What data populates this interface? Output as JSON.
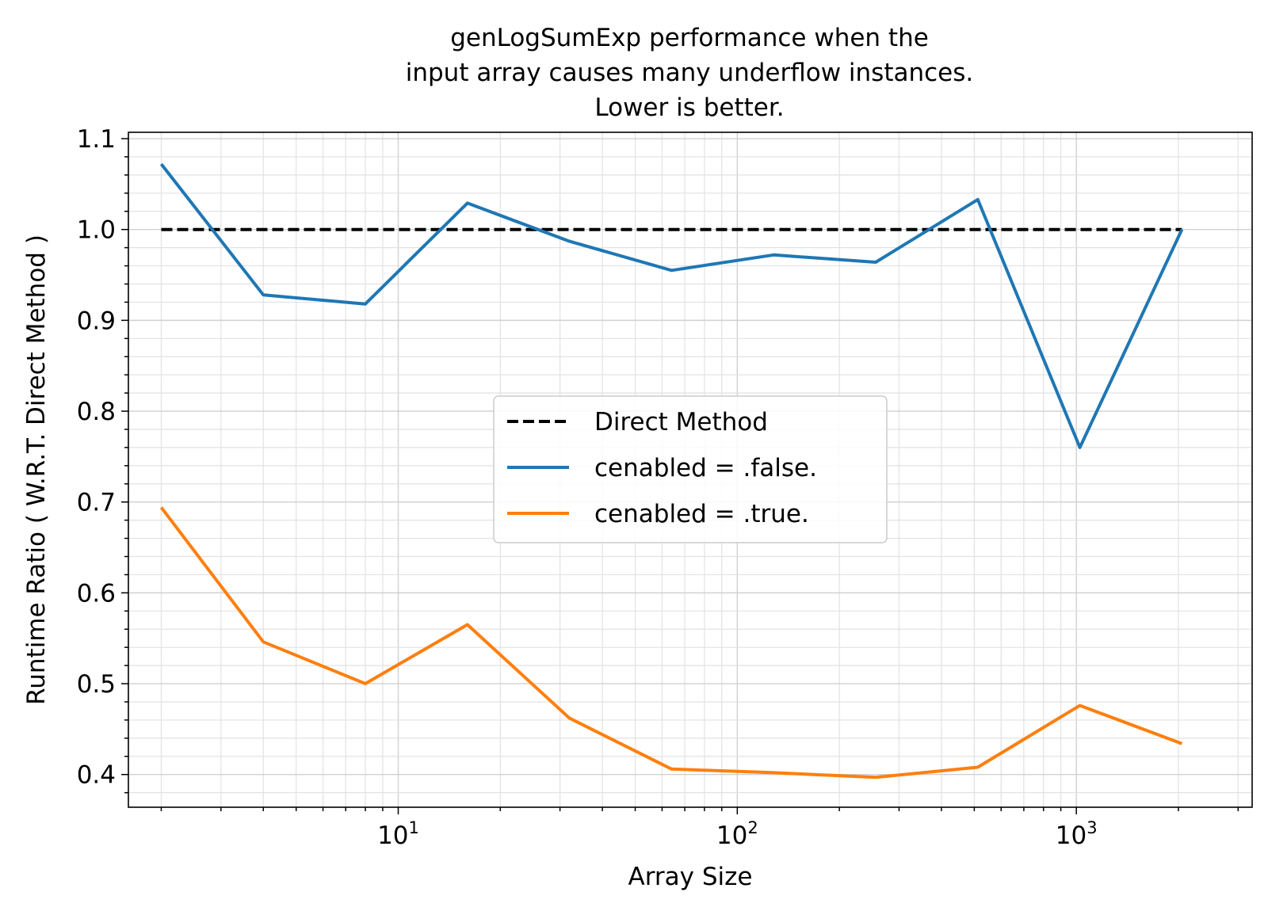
{
  "chart_data": {
    "type": "line",
    "title_lines": [
      "genLogSumExp performance when the",
      "input array causes many underflow instances.",
      "Lower is better."
    ],
    "xlabel": "Array Size",
    "ylabel": "Runtime Ratio ( W.R.T. Direct Method )",
    "xscale": "log",
    "xlim": [
      1.6,
      3300
    ],
    "ylim": [
      0.364,
      1.107
    ],
    "x_ticks": [
      {
        "base": "10",
        "exp": "1",
        "value": 10
      },
      {
        "base": "10",
        "exp": "2",
        "value": 100
      },
      {
        "base": "10",
        "exp": "3",
        "value": 1000
      }
    ],
    "y_ticks": [
      "0.4",
      "0.5",
      "0.6",
      "0.7",
      "0.8",
      "0.9",
      "1.0",
      "1.1"
    ],
    "grid": "major and minor",
    "legend_position": "center",
    "x": [
      2,
      4,
      8,
      16,
      32,
      64,
      128,
      256,
      512,
      1024,
      2048
    ],
    "series": [
      {
        "name": "Direct Method",
        "color": "#000000",
        "style": "dashed",
        "values": [
          1.0,
          1.0,
          1.0,
          1.0,
          1.0,
          1.0,
          1.0,
          1.0,
          1.0,
          1.0,
          1.0
        ]
      },
      {
        "name": "cenabled = .false.",
        "color": "#1f77b4",
        "style": "solid",
        "values": [
          1.072,
          0.928,
          0.918,
          1.029,
          0.987,
          0.955,
          0.972,
          0.964,
          1.033,
          0.76,
          1.0
        ]
      },
      {
        "name": "cenabled = .true.",
        "color": "#ff7f0e",
        "style": "solid",
        "values": [
          0.694,
          0.546,
          0.5,
          0.565,
          0.462,
          0.406,
          0.402,
          0.397,
          0.408,
          0.476,
          0.434
        ]
      }
    ]
  }
}
